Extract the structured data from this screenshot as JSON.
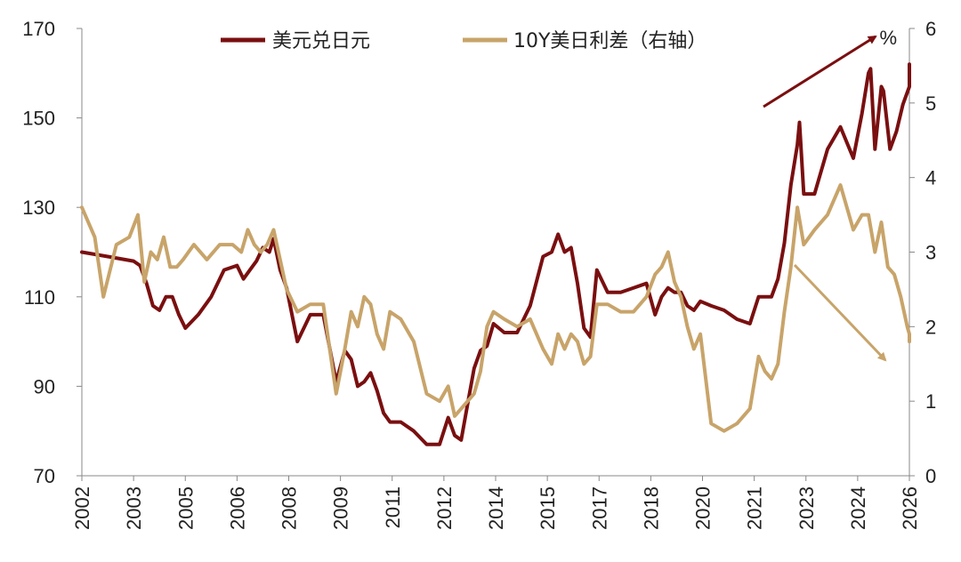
{
  "chart_data": {
    "type": "line",
    "grid": false,
    "legend_position": "top-center",
    "right_axis_unit": "%",
    "x_ticks": [
      "2002",
      "2003",
      "2005",
      "2006",
      "2008",
      "2009",
      "2011",
      "2012",
      "2014",
      "2015",
      "2017",
      "2018",
      "2020",
      "2021",
      "2023",
      "2024",
      "2026"
    ],
    "y_left": {
      "range": [
        70,
        170
      ],
      "ticks": [
        70,
        90,
        110,
        130,
        150,
        170
      ]
    },
    "y_right": {
      "range": [
        0,
        6
      ],
      "ticks": [
        0,
        1,
        2,
        3,
        4,
        5,
        6
      ]
    },
    "series": [
      {
        "name": "美元兑日元",
        "color": "#7a0f10",
        "axis": "left",
        "points": [
          [
            "2002-01",
            120
          ],
          [
            "2002-07",
            119
          ],
          [
            "2003-01",
            118
          ],
          [
            "2003-04",
            117
          ],
          [
            "2003-07",
            113
          ],
          [
            "2003-10",
            108
          ],
          [
            "2004-01",
            107
          ],
          [
            "2004-04",
            110
          ],
          [
            "2004-07",
            110
          ],
          [
            "2004-10",
            106
          ],
          [
            "2005-01",
            103
          ],
          [
            "2005-04",
            106
          ],
          [
            "2005-07",
            110
          ],
          [
            "2005-10",
            116
          ],
          [
            "2006-01",
            117
          ],
          [
            "2006-04",
            114
          ],
          [
            "2006-07",
            116
          ],
          [
            "2006-10",
            118
          ],
          [
            "2007-01",
            121
          ],
          [
            "2007-04",
            120
          ],
          [
            "2007-06",
            123
          ],
          [
            "2007-09",
            116
          ],
          [
            "2007-12",
            112
          ],
          [
            "2008-03",
            100
          ],
          [
            "2008-06",
            106
          ],
          [
            "2008-09",
            106
          ],
          [
            "2008-12",
            91
          ],
          [
            "2009-03",
            98
          ],
          [
            "2009-06",
            96
          ],
          [
            "2009-09",
            90
          ],
          [
            "2009-12",
            91
          ],
          [
            "2010-03",
            93
          ],
          [
            "2010-06",
            89
          ],
          [
            "2010-09",
            84
          ],
          [
            "2010-12",
            82
          ],
          [
            "2011-03",
            82
          ],
          [
            "2011-06",
            80
          ],
          [
            "2011-09",
            77
          ],
          [
            "2011-12",
            77
          ],
          [
            "2012-03",
            83
          ],
          [
            "2012-06",
            79
          ],
          [
            "2012-09",
            78
          ],
          [
            "2012-12",
            86
          ],
          [
            "2013-03",
            94
          ],
          [
            "2013-06",
            98
          ],
          [
            "2013-09",
            99
          ],
          [
            "2013-12",
            104
          ],
          [
            "2014-03",
            102
          ],
          [
            "2014-06",
            102
          ],
          [
            "2014-09",
            108
          ],
          [
            "2014-12",
            119
          ],
          [
            "2015-03",
            120
          ],
          [
            "2015-06",
            124
          ],
          [
            "2015-09",
            120
          ],
          [
            "2015-12",
            121
          ],
          [
            "2016-03",
            113
          ],
          [
            "2016-06",
            103
          ],
          [
            "2016-09",
            101
          ],
          [
            "2016-12",
            116
          ],
          [
            "2017-03",
            111
          ],
          [
            "2017-06",
            111
          ],
          [
            "2017-09",
            112
          ],
          [
            "2017-12",
            113
          ],
          [
            "2018-03",
            106
          ],
          [
            "2018-06",
            110
          ],
          [
            "2018-09",
            112
          ],
          [
            "2018-12",
            111
          ],
          [
            "2019-03",
            111
          ],
          [
            "2019-06",
            108
          ],
          [
            "2019-09",
            107
          ],
          [
            "2019-12",
            109
          ],
          [
            "2020-03",
            108
          ],
          [
            "2020-06",
            107
          ],
          [
            "2020-09",
            105
          ],
          [
            "2020-12",
            104
          ],
          [
            "2021-03",
            110
          ],
          [
            "2021-06",
            110
          ],
          [
            "2021-09",
            110
          ],
          [
            "2021-12",
            114
          ],
          [
            "2022-03",
            122
          ],
          [
            "2022-06",
            135
          ],
          [
            "2022-09",
            144
          ],
          [
            "2022-10",
            149
          ],
          [
            "2022-12",
            133
          ],
          [
            "2023-03",
            133
          ],
          [
            "2023-06",
            143
          ],
          [
            "2023-09",
            148
          ],
          [
            "2023-12",
            141
          ],
          [
            "2024-03",
            151
          ],
          [
            "2024-06",
            160
          ],
          [
            "2024-07",
            161
          ],
          [
            "2024-09",
            143
          ],
          [
            "2024-12",
            157
          ],
          [
            "2025-01",
            156
          ],
          [
            "2025-04",
            143
          ],
          [
            "2025-07",
            147
          ],
          [
            "2025-10",
            153
          ],
          [
            "2026-01",
            157
          ],
          [
            "2026-03",
            159
          ],
          [
            "2026-05",
            162
          ]
        ]
      },
      {
        "name": "10Y美日利差（右轴）",
        "color": "#c8a46a",
        "axis": "right",
        "points": [
          [
            "2002-01",
            3.6
          ],
          [
            "2002-04",
            3.2
          ],
          [
            "2002-06",
            2.4
          ],
          [
            "2002-09",
            3.1
          ],
          [
            "2002-12",
            3.2
          ],
          [
            "2003-03",
            3.5
          ],
          [
            "2003-06",
            2.6
          ],
          [
            "2003-09",
            3.0
          ],
          [
            "2003-12",
            2.9
          ],
          [
            "2004-03",
            3.2
          ],
          [
            "2004-06",
            2.8
          ],
          [
            "2004-09",
            2.8
          ],
          [
            "2004-12",
            2.9
          ],
          [
            "2005-03",
            3.1
          ],
          [
            "2005-06",
            2.9
          ],
          [
            "2005-09",
            3.1
          ],
          [
            "2005-12",
            3.1
          ],
          [
            "2006-03",
            3.0
          ],
          [
            "2006-06",
            3.3
          ],
          [
            "2006-09",
            3.1
          ],
          [
            "2006-12",
            3.0
          ],
          [
            "2007-03",
            3.1
          ],
          [
            "2007-06",
            3.3
          ],
          [
            "2007-09",
            2.9
          ],
          [
            "2007-12",
            2.5
          ],
          [
            "2008-03",
            2.2
          ],
          [
            "2008-06",
            2.3
          ],
          [
            "2008-09",
            2.3
          ],
          [
            "2008-12",
            1.1
          ],
          [
            "2009-03",
            1.7
          ],
          [
            "2009-06",
            2.2
          ],
          [
            "2009-09",
            2.0
          ],
          [
            "2009-12",
            2.4
          ],
          [
            "2010-03",
            2.3
          ],
          [
            "2010-06",
            1.9
          ],
          [
            "2010-09",
            1.7
          ],
          [
            "2010-12",
            2.2
          ],
          [
            "2011-03",
            2.1
          ],
          [
            "2011-06",
            1.8
          ],
          [
            "2011-09",
            1.1
          ],
          [
            "2011-12",
            1.0
          ],
          [
            "2012-03",
            1.2
          ],
          [
            "2012-06",
            0.8
          ],
          [
            "2012-09",
            0.9
          ],
          [
            "2012-12",
            1.0
          ],
          [
            "2013-03",
            1.1
          ],
          [
            "2013-06",
            1.4
          ],
          [
            "2013-09",
            2.0
          ],
          [
            "2013-12",
            2.2
          ],
          [
            "2014-03",
            2.1
          ],
          [
            "2014-06",
            2.0
          ],
          [
            "2014-09",
            2.1
          ],
          [
            "2014-12",
            1.7
          ],
          [
            "2015-03",
            1.5
          ],
          [
            "2015-06",
            1.9
          ],
          [
            "2015-09",
            1.7
          ],
          [
            "2015-12",
            1.9
          ],
          [
            "2016-03",
            1.8
          ],
          [
            "2016-06",
            1.5
          ],
          [
            "2016-09",
            1.6
          ],
          [
            "2016-12",
            2.3
          ],
          [
            "2017-03",
            2.3
          ],
          [
            "2017-06",
            2.2
          ],
          [
            "2017-09",
            2.2
          ],
          [
            "2017-12",
            2.4
          ],
          [
            "2018-03",
            2.7
          ],
          [
            "2018-06",
            2.8
          ],
          [
            "2018-09",
            3.0
          ],
          [
            "2018-12",
            2.6
          ],
          [
            "2019-03",
            2.4
          ],
          [
            "2019-06",
            2.0
          ],
          [
            "2019-09",
            1.7
          ],
          [
            "2019-12",
            1.9
          ],
          [
            "2020-03",
            0.7
          ],
          [
            "2020-06",
            0.6
          ],
          [
            "2020-09",
            0.7
          ],
          [
            "2020-12",
            0.9
          ],
          [
            "2021-03",
            1.6
          ],
          [
            "2021-06",
            1.4
          ],
          [
            "2021-09",
            1.3
          ],
          [
            "2021-12",
            1.5
          ],
          [
            "2022-03",
            2.2
          ],
          [
            "2022-06",
            2.8
          ],
          [
            "2022-09",
            3.6
          ],
          [
            "2022-12",
            3.1
          ],
          [
            "2023-03",
            3.3
          ],
          [
            "2023-06",
            3.5
          ],
          [
            "2023-09",
            3.9
          ],
          [
            "2023-12",
            3.3
          ],
          [
            "2024-03",
            3.5
          ],
          [
            "2024-06",
            3.5
          ],
          [
            "2024-09",
            3.0
          ],
          [
            "2024-12",
            3.4
          ],
          [
            "2025-03",
            2.8
          ],
          [
            "2025-06",
            2.7
          ],
          [
            "2025-09",
            2.4
          ],
          [
            "2025-12",
            2.0
          ],
          [
            "2026-03",
            1.9
          ],
          [
            "2026-05",
            1.8
          ]
        ]
      }
    ],
    "annotations": [
      {
        "type": "arrow",
        "color": "#7a0f10",
        "meaning": "upward trend of 美元兑日元 from 2021"
      },
      {
        "type": "arrow",
        "color": "#c8a46a",
        "meaning": "downward trend of 10Y美日利差 from 2022"
      }
    ]
  }
}
